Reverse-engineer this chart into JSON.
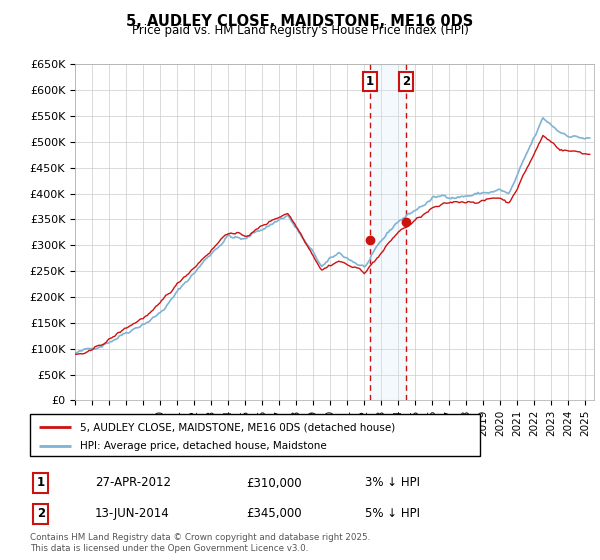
{
  "title": "5, AUDLEY CLOSE, MAIDSTONE, ME16 0DS",
  "subtitle": "Price paid vs. HM Land Registry's House Price Index (HPI)",
  "ylim": [
    0,
    650000
  ],
  "yticks": [
    0,
    50000,
    100000,
    150000,
    200000,
    250000,
    300000,
    350000,
    400000,
    450000,
    500000,
    550000,
    600000,
    650000
  ],
  "ytick_labels": [
    "£0",
    "£50K",
    "£100K",
    "£150K",
    "£200K",
    "£250K",
    "£300K",
    "£350K",
    "£400K",
    "£450K",
    "£500K",
    "£550K",
    "£600K",
    "£650K"
  ],
  "xlim_start": 1995.0,
  "xlim_end": 2025.5,
  "hpi_color": "#7fb3d3",
  "price_color": "#cc1111",
  "marker_color": "#cc1111",
  "vline_color": "#cc1111",
  "shade_color": "#d0e8f5",
  "transaction1": {
    "date_num": 2012.32,
    "price": 310000,
    "label": "1",
    "date_str": "27-APR-2012",
    "price_str": "£310,000",
    "vs_hpi": "3% ↓ HPI"
  },
  "transaction2": {
    "date_num": 2014.45,
    "price": 345000,
    "label": "2",
    "date_str": "13-JUN-2014",
    "price_str": "£345,000",
    "vs_hpi": "5% ↓ HPI"
  },
  "legend_line1": "5, AUDLEY CLOSE, MAIDSTONE, ME16 0DS (detached house)",
  "legend_line2": "HPI: Average price, detached house, Maidstone",
  "footnote": "Contains HM Land Registry data © Crown copyright and database right 2025.\nThis data is licensed under the Open Government Licence v3.0.",
  "noise_seed": 42
}
